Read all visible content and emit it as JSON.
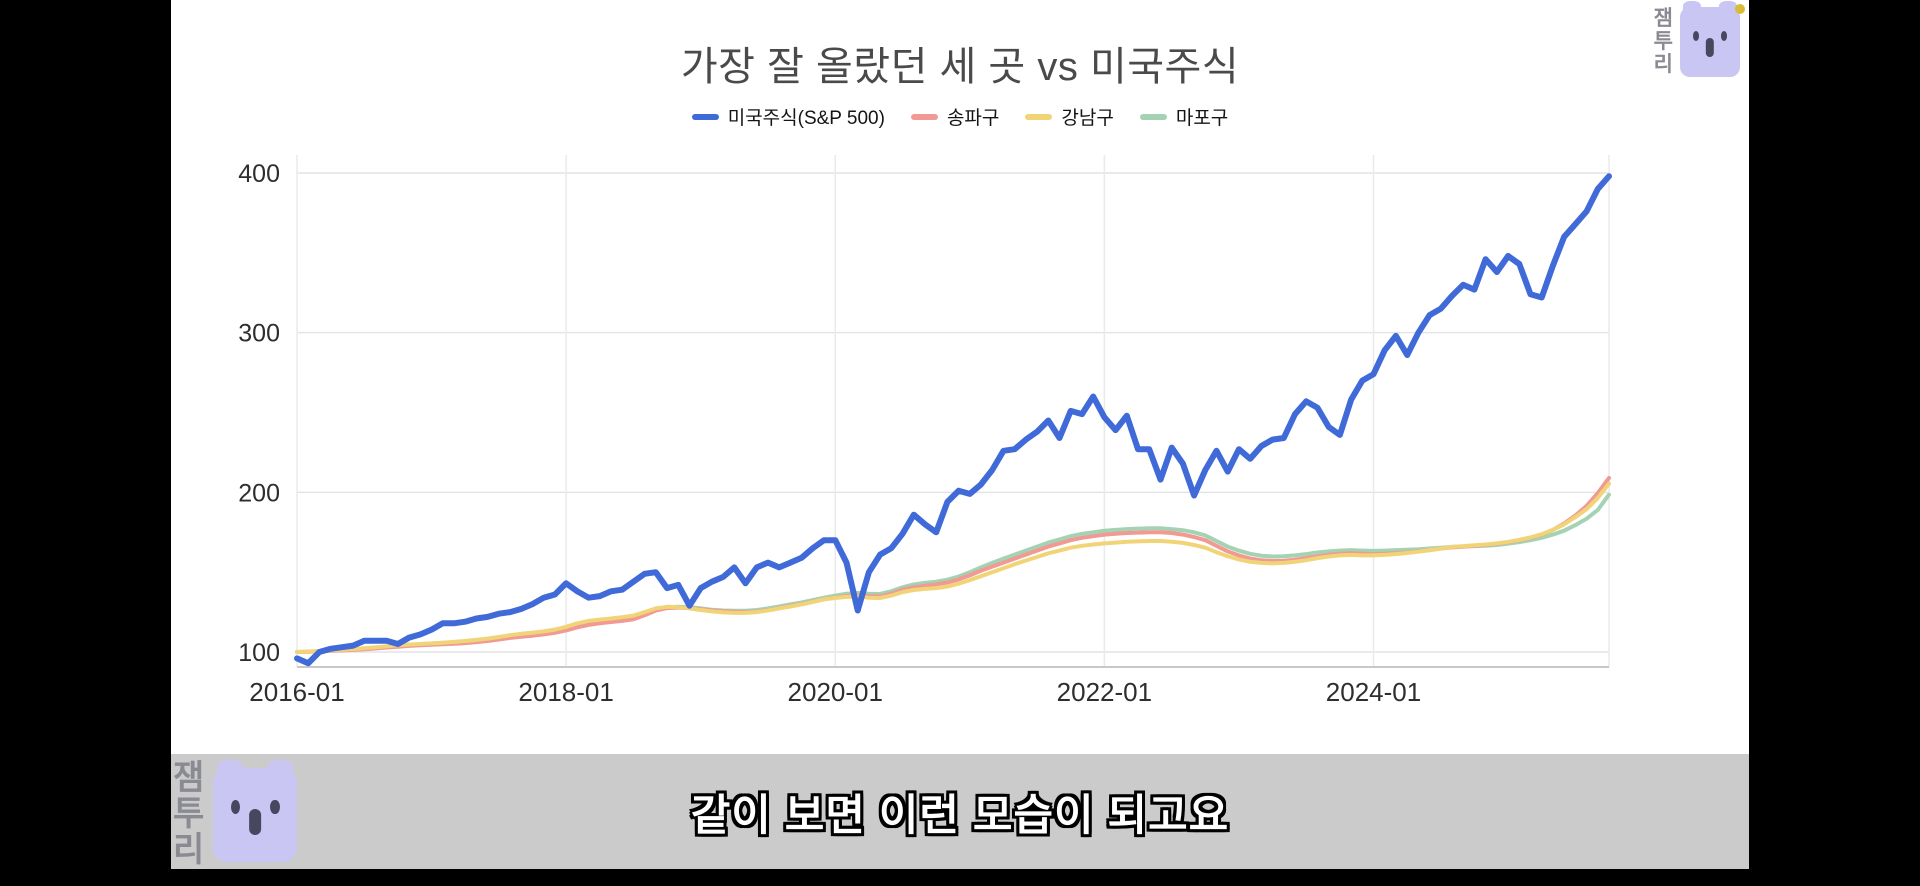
{
  "page": {
    "caption": "같이 보면 이런 모습이 되고요"
  },
  "brand": {
    "name": "잼투리",
    "name_chars": [
      "잼",
      "투",
      "리"
    ],
    "body_color": "#c9c6f3",
    "face_color": "#474760",
    "text_color": "#8a8a93",
    "dot_color": "#d9bb35"
  },
  "chart_data": {
    "type": "line",
    "title": "가장 잘 올랐던 세 곳 vs 미국주식",
    "xlabel": "",
    "ylabel": "",
    "frequency": "monthly",
    "x_start": "2016-01",
    "x_end": "2025-10",
    "x_tick_labels": [
      "2016-01",
      "2018-01",
      "2020-01",
      "2022-01",
      "2024-01"
    ],
    "x_tick_month_index": [
      0,
      24,
      48,
      72,
      96
    ],
    "y_ticks": [
      100,
      200,
      300,
      400
    ],
    "ylim": [
      90,
      412
    ],
    "grid": true,
    "legend_position": "top",
    "draw_order": [
      3,
      1,
      2,
      0
    ],
    "series": [
      {
        "name": "미국주식(S&P 500)",
        "color": "#3f6ad8",
        "width": 6,
        "values": [
          96,
          93,
          100,
          102,
          103,
          104,
          107,
          107,
          107,
          105,
          109,
          111,
          114,
          118,
          118,
          119,
          121,
          122,
          124,
          125,
          127,
          130,
          134,
          136,
          143,
          138,
          134,
          135,
          138,
          139,
          144,
          149,
          150,
          140,
          142,
          129,
          140,
          144,
          147,
          153,
          143,
          153,
          156,
          153,
          156,
          159,
          165,
          170,
          170,
          156,
          126,
          150,
          161,
          165,
          174,
          186,
          180,
          175,
          194,
          201,
          199,
          205,
          214,
          226,
          227,
          233,
          238,
          245,
          234,
          251,
          249,
          260,
          247,
          239,
          248,
          227,
          227,
          208,
          228,
          218,
          198,
          214,
          226,
          213,
          227,
          221,
          229,
          233,
          234,
          249,
          257,
          253,
          241,
          236,
          258,
          270,
          274,
          289,
          298,
          286,
          300,
          311,
          315,
          323,
          330,
          327,
          346,
          338,
          348,
          343,
          324,
          322,
          342,
          360,
          368,
          376,
          390,
          398
        ]
      },
      {
        "name": "송파구",
        "color": "#f09a93",
        "width": 4,
        "values": [
          100.0,
          100.2,
          100.4,
          100.7,
          101.0,
          101.3,
          101.7,
          102.2,
          102.8,
          103.3,
          103.8,
          104.2,
          104.5,
          104.8,
          105.2,
          105.6,
          106.2,
          106.9,
          107.8,
          108.8,
          109.6,
          110.2,
          111.0,
          112.0,
          113.5,
          115.5,
          117.0,
          118.0,
          118.8,
          119.5,
          120.5,
          123.0,
          126.0,
          127.5,
          127.8,
          127.5,
          126.8,
          126.0,
          125.5,
          125.2,
          125.0,
          125.3,
          126.2,
          127.5,
          128.8,
          130.0,
          131.5,
          133.0,
          134.0,
          135.0,
          135.5,
          135.0,
          134.8,
          136.5,
          139.0,
          140.5,
          141.5,
          142.3,
          143.5,
          145.5,
          148.0,
          151.0,
          153.5,
          156.0,
          158.5,
          161.0,
          163.5,
          166.0,
          168.0,
          170.0,
          171.5,
          172.5,
          173.5,
          174.0,
          174.5,
          174.8,
          175.0,
          175.0,
          174.5,
          173.5,
          172.0,
          170.0,
          166.5,
          163.0,
          160.5,
          158.5,
          157.5,
          157.0,
          157.2,
          157.8,
          158.8,
          159.8,
          160.8,
          161.5,
          161.8,
          161.5,
          161.3,
          161.5,
          161.8,
          162.3,
          163.0,
          163.8,
          164.8,
          165.5,
          166.0,
          166.5,
          167.0,
          167.8,
          168.8,
          170.0,
          171.5,
          173.5,
          176.5,
          180.5,
          185.5,
          191.5,
          199.5,
          209.0
        ]
      },
      {
        "name": "강남구",
        "color": "#f2d478",
        "width": 4,
        "values": [
          100.0,
          100.3,
          100.6,
          101.0,
          101.4,
          101.8,
          102.3,
          102.9,
          103.6,
          104.2,
          104.7,
          105.0,
          105.4,
          105.8,
          106.3,
          106.9,
          107.6,
          108.4,
          109.4,
          110.5,
          111.4,
          112.0,
          112.9,
          114.0,
          115.8,
          118.0,
          119.5,
          120.3,
          121.0,
          121.8,
          122.8,
          125.0,
          127.3,
          128.3,
          128.0,
          127.3,
          126.3,
          125.4,
          124.8,
          124.5,
          124.5,
          125.0,
          126.0,
          127.3,
          128.5,
          129.8,
          131.3,
          133.0,
          133.8,
          134.5,
          134.8,
          134.0,
          133.8,
          135.3,
          137.5,
          138.8,
          139.5,
          140.0,
          141.0,
          142.8,
          145.0,
          147.5,
          150.0,
          152.5,
          155.0,
          157.3,
          159.5,
          161.8,
          163.5,
          165.3,
          166.5,
          167.3,
          168.0,
          168.5,
          169.0,
          169.3,
          169.5,
          169.5,
          169.0,
          168.3,
          167.0,
          165.3,
          162.5,
          160.0,
          158.0,
          156.5,
          155.8,
          155.5,
          155.8,
          156.5,
          157.5,
          158.8,
          159.8,
          160.5,
          160.8,
          160.5,
          160.5,
          160.8,
          161.3,
          162.0,
          162.8,
          163.8,
          164.8,
          165.8,
          166.3,
          166.8,
          167.3,
          168.0,
          169.0,
          170.3,
          171.8,
          173.8,
          176.5,
          180.0,
          184.5,
          189.5,
          196.5,
          205.5
        ]
      },
      {
        "name": "마포구",
        "color": "#a4d2b2",
        "width": 4,
        "values": [
          100.0,
          100.2,
          100.5,
          100.8,
          101.2,
          101.6,
          102.1,
          102.7,
          103.4,
          104.0,
          104.5,
          104.9,
          105.3,
          105.7,
          106.2,
          106.8,
          107.5,
          108.3,
          109.3,
          110.4,
          111.3,
          112.0,
          112.8,
          113.8,
          115.3,
          117.3,
          118.8,
          119.8,
          120.5,
          121.3,
          122.3,
          124.5,
          126.8,
          128.0,
          128.3,
          128.0,
          127.3,
          126.5,
          126.0,
          125.8,
          125.8,
          126.3,
          127.3,
          128.5,
          129.8,
          131.0,
          132.5,
          134.0,
          135.3,
          136.5,
          137.0,
          136.5,
          136.3,
          138.0,
          140.5,
          142.3,
          143.3,
          144.0,
          145.3,
          147.3,
          150.0,
          153.0,
          155.8,
          158.5,
          161.0,
          163.5,
          166.0,
          168.5,
          170.5,
          172.5,
          174.0,
          175.0,
          176.0,
          176.5,
          177.0,
          177.3,
          177.5,
          177.5,
          177.0,
          176.3,
          175.0,
          173.0,
          169.5,
          166.0,
          163.5,
          161.5,
          160.3,
          159.8,
          160.0,
          160.5,
          161.3,
          162.3,
          163.0,
          163.5,
          163.8,
          163.5,
          163.3,
          163.5,
          163.8,
          164.0,
          164.3,
          164.8,
          165.3,
          165.8,
          166.0,
          166.3,
          166.5,
          167.0,
          167.8,
          168.8,
          170.0,
          171.5,
          173.5,
          176.0,
          179.5,
          183.5,
          189.0,
          198.5
        ]
      }
    ]
  }
}
